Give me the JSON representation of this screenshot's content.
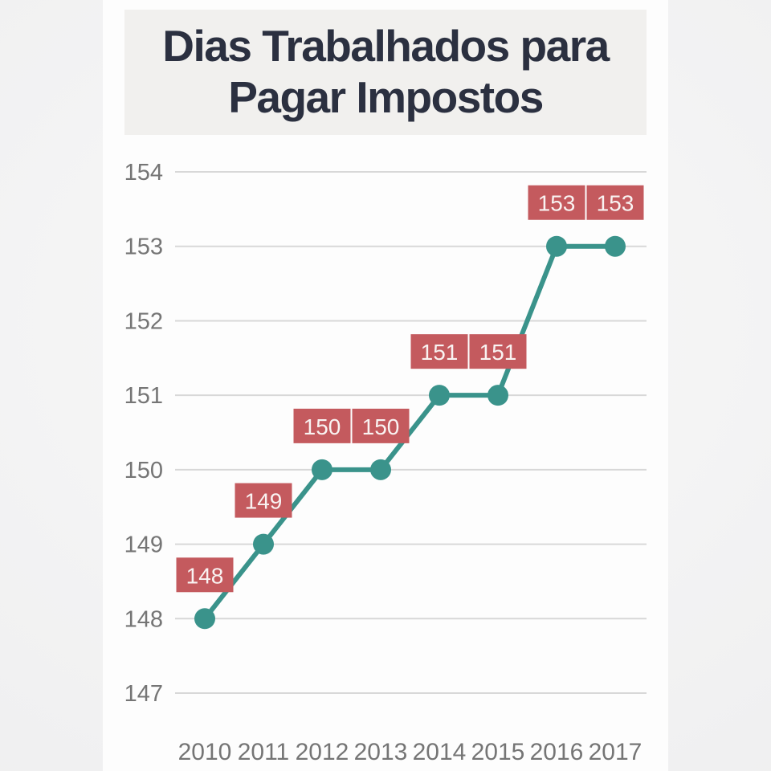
{
  "title": {
    "lines": [
      "Dias Trabalhados para",
      "Pagar Impostos"
    ]
  },
  "chart_data": {
    "type": "line",
    "title": "Dias Trabalhados para Pagar Impostos",
    "categories": [
      "2010",
      "2011",
      "2012",
      "2013",
      "2014",
      "2015",
      "2016",
      "2017"
    ],
    "values": [
      148,
      149,
      150,
      150,
      151,
      151,
      153,
      153
    ],
    "show_point_labels": true,
    "yticks": [
      154,
      153,
      152,
      151,
      150,
      149,
      148,
      147
    ],
    "ylim": [
      147,
      154
    ],
    "xlabel": "",
    "ylabel": "",
    "grid": true,
    "legend": false,
    "marker": "circle",
    "colors": {
      "line": "#3a938b",
      "marker": "#3a938b",
      "label_bg": "#c45a5e",
      "label_text": "#f9f3f2",
      "grid": "#d8d8d8",
      "axis_text": "#757575",
      "title_text": "#2b3040",
      "title_bg": "#f1f0ee",
      "card_bg": "#fdfdfd",
      "page_bg": "#efeff0"
    }
  }
}
